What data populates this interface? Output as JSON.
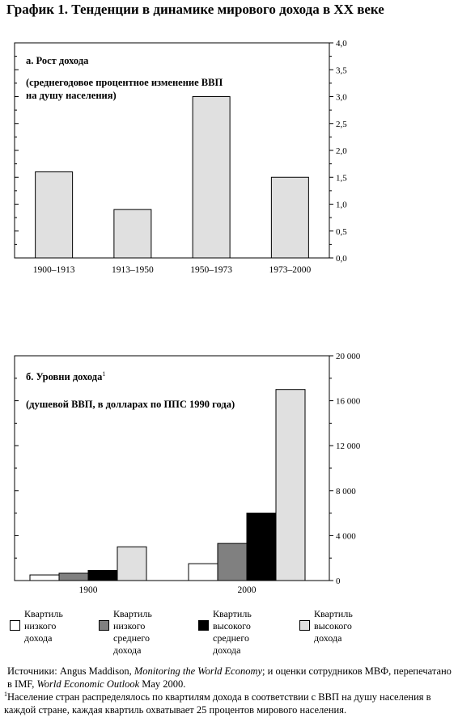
{
  "page": {
    "title": "График 1. Тенденции в динамике мирового дохода в XX веке"
  },
  "chart_data": [
    {
      "type": "bar",
      "panel_label": "а. Рост дохода",
      "subtitle_lines": [
        "(среднегодовое процентное изменение ВВП",
        "на душу населения)"
      ],
      "categories": [
        "1900–1913",
        "1913–1950",
        "1950–1973",
        "1973–2000"
      ],
      "values": [
        1.6,
        0.9,
        3.0,
        1.5
      ],
      "ylim": [
        0,
        4.0
      ],
      "yticks": [
        "0,0",
        "0,5",
        "1,0",
        "1,5",
        "2,0",
        "2,5",
        "3,0",
        "3,5",
        "4,0"
      ],
      "bar_color": "#e0e0e0",
      "axis_side": "right"
    },
    {
      "type": "bar",
      "panel_label": "б. Уровни дохода",
      "panel_label_sup": "1",
      "subtitle_lines": [
        "(душевой ВВП, в долларах по ППС 1990 года)"
      ],
      "categories": [
        "1900",
        "2000"
      ],
      "series": [
        {
          "name": "Квартиль низкого дохода",
          "color": "#ffffff",
          "values": [
            500,
            1500
          ]
        },
        {
          "name": "Квартиль низкого среднего дохода",
          "color": "#808080",
          "values": [
            650,
            3300
          ]
        },
        {
          "name": "Квартиль высокого среднего дохода",
          "color": "#000000",
          "values": [
            900,
            6000
          ]
        },
        {
          "name": "Квартиль высокого дохода",
          "color": "#e0e0e0",
          "values": [
            3000,
            17000
          ]
        }
      ],
      "ylim": [
        0,
        20000
      ],
      "yticks": [
        "0",
        "4 000",
        "8 000",
        "12 000",
        "16 000",
        "20 000"
      ],
      "axis_side": "right"
    }
  ],
  "legend": [
    {
      "lines": [
        "Квартиль",
        "низкого",
        "дохода"
      ],
      "color": "#ffffff"
    },
    {
      "lines": [
        "Квартиль",
        "низкого",
        "среднего",
        "дохода"
      ],
      "color": "#808080"
    },
    {
      "lines": [
        "Квартиль",
        "высокого",
        "среднего",
        "дохода"
      ],
      "color": "#000000"
    },
    {
      "lines": [
        "Квартиль",
        "высокого",
        "дохода"
      ],
      "color": "#e0e0e0"
    }
  ],
  "source": {
    "prefix": "Источники: Angus Maddison, ",
    "book": "Monitoring the World Economy",
    "middle": "; и оценки сотрудников МВФ, перепечатано в IMF, ",
    "report": "World Economic Outlook",
    "suffix": " May 2000.",
    "footnote_mark": "1",
    "footnote": "Население стран распределялось по квартилям дохода в соответствии с ВВП на душу населения в каждой стране, каждая квартиль охватывает 25 процентов мирового населения."
  }
}
